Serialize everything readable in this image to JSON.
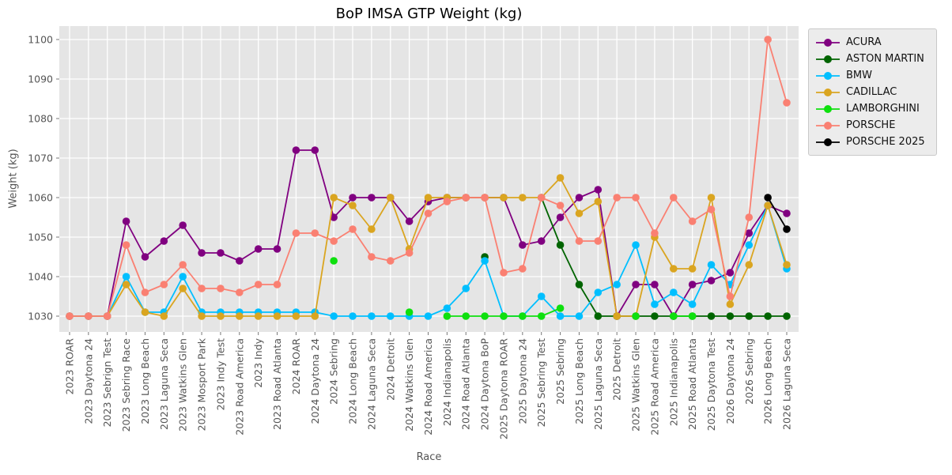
{
  "chart_data": {
    "type": "line",
    "title": "BoP IMSA GTP Weight (kg)",
    "xlabel": "Race",
    "ylabel": "Weight (kg)",
    "ylim": [
      1026,
      1104
    ],
    "yticks": [
      1030,
      1040,
      1050,
      1060,
      1070,
      1080,
      1090,
      1100
    ],
    "grid": true,
    "plot_bg": "#e5e5e5",
    "grid_color": "#ffffff",
    "tick_color": "#555555",
    "legend_position": "outside-right-top",
    "categories": [
      "2023 ROAR",
      "2023 Daytona 24",
      "2023 Sebrign Test",
      "2023 Sebring Race",
      "2023 Long Beach",
      "2023 Laguna Seca",
      "2023 Watkins Glen",
      "2023 Mosport Park",
      "2023 Indy Test",
      "2023 Road America",
      "2023 Indy",
      "2023 Road Atlanta",
      "2024 ROAR",
      "2024 Daytona 24",
      "2024 Sebring",
      "2024 Long Beach",
      "2024 Laguna Seca",
      "2024 Detroit",
      "2024 Watkins Glen",
      "2024 Road America",
      "2024 Indianapolis",
      "2024 Road Atlanta",
      "2024 Daytona BoP",
      "2025 Daytona ROAR",
      "2025 Daytona 24",
      "2025 Sebring Test",
      "2025 Sebring",
      "2025 Long Beach",
      "2025 Laguna Seca",
      "2025 Detroit",
      "2025 Watkins Glen",
      "2025 Road America",
      "2025 Indianapolis",
      "2025 Road Atlanta",
      "2025 Daytona Test",
      "2026 Daytona 24",
      "2026 Sebring",
      "2026 Long Beach",
      "2026 Laguna Seca"
    ],
    "series": [
      {
        "name": "ACURA",
        "color": "#800080",
        "values": [
          1030,
          1030,
          1030,
          1054,
          1045,
          1049,
          1053,
          1046,
          1046,
          1044,
          1047,
          1047,
          1072,
          1072,
          1055,
          1060,
          1060,
          1060,
          1054,
          1059,
          1060,
          1060,
          1060,
          1060,
          1048,
          1049,
          1055,
          1060,
          1062,
          1030,
          1038,
          1038,
          1030,
          1038,
          1039,
          1041,
          1051,
          1058,
          1056
        ]
      },
      {
        "name": "ASTON MARTIN",
        "color": "#006400",
        "values": [
          null,
          null,
          null,
          null,
          null,
          null,
          null,
          null,
          null,
          null,
          null,
          null,
          null,
          null,
          null,
          null,
          null,
          null,
          null,
          null,
          null,
          null,
          1045,
          null,
          null,
          1060,
          1048,
          1038,
          1030,
          1030,
          1030,
          1030,
          1030,
          1030,
          1030,
          1030,
          1030,
          1030,
          1030
        ]
      },
      {
        "name": "BMW",
        "color": "#00bfff",
        "values": [
          1030,
          1030,
          1030,
          1040,
          1031,
          1031,
          1040,
          1031,
          1031,
          1031,
          1031,
          1031,
          1031,
          1031,
          1030,
          1030,
          1030,
          1030,
          1030,
          1030,
          1032,
          1037,
          1044,
          1030,
          1030,
          1035,
          1030,
          1030,
          1036,
          1038,
          1048,
          1033,
          1036,
          1033,
          1043,
          1038,
          1048,
          1058,
          1042
        ]
      },
      {
        "name": "CADILLAC",
        "color": "#daa520",
        "values": [
          1030,
          1030,
          1030,
          1038,
          1031,
          1030,
          1037,
          1030,
          1030,
          1030,
          1030,
          1030,
          1030,
          1030,
          1060,
          1058,
          1052,
          1060,
          1047,
          1060,
          1060,
          1060,
          1060,
          1060,
          1060,
          1060,
          1065,
          1056,
          1059,
          1030,
          1030,
          1050,
          1042,
          1042,
          1060,
          1033,
          1043,
          1058,
          1043
        ]
      },
      {
        "name": "LAMBORGHINI",
        "color": "#0ee00e",
        "values": [
          null,
          null,
          null,
          null,
          null,
          null,
          null,
          null,
          null,
          null,
          null,
          null,
          null,
          null,
          1044,
          null,
          null,
          null,
          1031,
          null,
          1030,
          1030,
          1030,
          1030,
          1030,
          1030,
          1032,
          null,
          null,
          null,
          1030,
          null,
          1030,
          1030,
          null,
          null,
          null,
          null,
          null
        ]
      },
      {
        "name": "PORSCHE",
        "color": "#fa8072",
        "values": [
          1030,
          1030,
          1030,
          1048,
          1036,
          1038,
          1043,
          1037,
          1037,
          1036,
          1038,
          1038,
          1051,
          1051,
          1049,
          1052,
          1045,
          1044,
          1046,
          1056,
          1059,
          1060,
          1060,
          1041,
          1042,
          1060,
          1058,
          1049,
          1049,
          1060,
          1060,
          1051,
          1060,
          1054,
          1057,
          1035,
          1055,
          1100,
          1084
        ]
      },
      {
        "name": "PORSCHE 2025",
        "color": "#000000",
        "values": [
          null,
          null,
          null,
          null,
          null,
          null,
          null,
          null,
          null,
          null,
          null,
          null,
          null,
          null,
          null,
          null,
          null,
          null,
          null,
          null,
          null,
          null,
          null,
          null,
          null,
          null,
          null,
          null,
          null,
          null,
          null,
          null,
          null,
          null,
          null,
          null,
          null,
          1060,
          1052
        ]
      }
    ]
  }
}
